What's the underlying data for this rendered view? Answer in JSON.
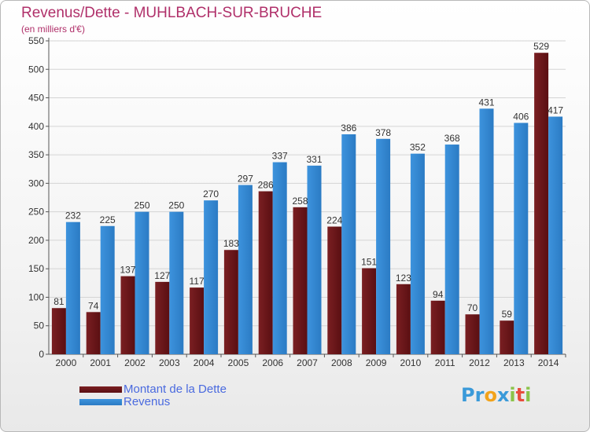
{
  "title": "Revenus/Dette - MUHLBACH-SUR-BRUCHE",
  "subtitle": "(en milliers d'€)",
  "logo": {
    "text": "Proxiti",
    "letters": [
      {
        "ch": "P",
        "color": "#3a9ad9"
      },
      {
        "ch": "r",
        "color": "#3a9ad9"
      },
      {
        "ch": "o",
        "color": "#f2a31b"
      },
      {
        "ch": "x",
        "color": "#3a9ad9"
      },
      {
        "ch": "i",
        "color": "#8bc34a"
      },
      {
        "ch": "t",
        "color": "#e84c3d"
      },
      {
        "ch": "i",
        "color": "#8bc34a"
      }
    ]
  },
  "colors": {
    "debt": "#7a1f22",
    "debt_dark": "#5a0f12",
    "revenue": "#3d93dd",
    "revenue_dark": "#2b7bc4",
    "grid": "#d4d4d4",
    "axis": "#555555"
  },
  "chart_data": {
    "type": "bar",
    "title": "Revenus/Dette - MUHLBACH-SUR-BRUCHE",
    "subtitle": "(en milliers d'€)",
    "categories": [
      "2000",
      "2001",
      "2002",
      "2003",
      "2004",
      "2005",
      "2006",
      "2007",
      "2008",
      "2009",
      "2010",
      "2011",
      "2012",
      "2013",
      "2014"
    ],
    "series": [
      {
        "name": "Montant de la Dette",
        "values": [
          81,
          74,
          137,
          127,
          117,
          183,
          286,
          258,
          224,
          151,
          123,
          94,
          70,
          59,
          529
        ]
      },
      {
        "name": "Revenus",
        "values": [
          232,
          225,
          250,
          250,
          270,
          297,
          337,
          331,
          386,
          378,
          352,
          368,
          431,
          406,
          417
        ]
      }
    ],
    "ylim": [
      0,
      550
    ],
    "yticks": [
      0,
      50,
      100,
      150,
      200,
      250,
      300,
      350,
      400,
      450,
      500,
      550
    ],
    "grid": true,
    "legend": "bottom-left"
  }
}
